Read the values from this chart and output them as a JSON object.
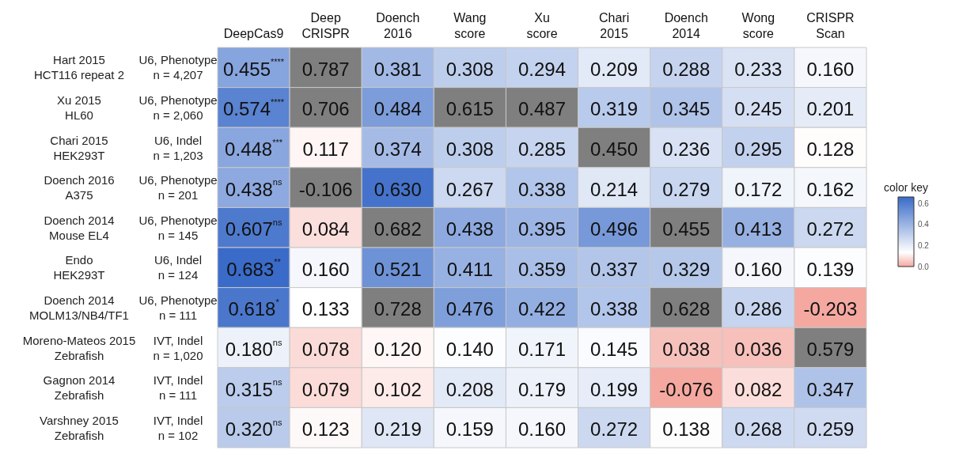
{
  "chart_data": {
    "type": "heatmap",
    "clabel": "color key",
    "categories": [
      "DeepCas9",
      "Deep\nCRISPR",
      "Doench\n2016",
      "Wang\nscore",
      "Xu\nscore",
      "Chari\n2015",
      "Doench\n2014",
      "Wong\nscore",
      "CRISPR\nScan"
    ],
    "y_categories": [
      "Hart 2015\nHCT116 repeat 2",
      "Xu 2015\nHL60",
      "Chari 2015\nHEK293T",
      "Doench 2016\nA375",
      "Doench 2014\nMouse EL4",
      "Endo\nHEK293T",
      "Doench 2014\nMOLM13/NB4/TF1",
      "Moreno-Mateos 2015\nZebrafish",
      "Gagnon 2014\nZebrafish",
      "Varshney 2015\nZebrafish"
    ],
    "y2_categories": [
      "U6, Phenotype\nn = 4,207",
      "U6, Phenotype\nn = 2,060",
      "U6, Indel\nn = 1,203",
      "U6, Phenotype\nn = 201",
      "U6, Phenotype\nn = 145",
      "U6, Indel\nn = 124",
      "U6, Phenotype\nn = 111",
      "IVT, Indel\nn = 1,020",
      "IVT, Indel\nn = 111",
      "IVT, Indel\nn = 102"
    ],
    "cells": [
      [
        0.455,
        null,
        0.381,
        0.308,
        0.294,
        0.209,
        0.288,
        0.233,
        0.16
      ],
      [
        0.574,
        null,
        0.484,
        null,
        null,
        0.319,
        0.345,
        0.245,
        0.201
      ],
      [
        0.448,
        0.117,
        0.374,
        0.308,
        0.285,
        null,
        0.236,
        0.295,
        0.128
      ],
      [
        0.438,
        null,
        0.63,
        0.267,
        0.338,
        0.214,
        0.279,
        0.172,
        0.162
      ],
      [
        0.607,
        0.084,
        null,
        0.438,
        0.395,
        0.496,
        null,
        0.413,
        0.272
      ],
      [
        0.683,
        0.16,
        0.521,
        0.411,
        0.359,
        0.337,
        0.329,
        0.16,
        0.139
      ],
      [
        0.618,
        0.133,
        null,
        0.476,
        0.422,
        0.338,
        null,
        0.286,
        -0.203
      ],
      [
        0.18,
        0.078,
        0.12,
        0.14,
        0.171,
        0.145,
        0.038,
        0.036,
        null
      ],
      [
        0.315,
        0.079,
        0.102,
        0.208,
        0.179,
        0.199,
        -0.076,
        0.082,
        0.347
      ],
      [
        0.32,
        0.123,
        0.219,
        0.159,
        0.16,
        0.272,
        0.138,
        0.268,
        0.259
      ]
    ],
    "cell_labels": [
      [
        "0.455$^{****}$",
        "0.787",
        "0.381",
        "0.308",
        "0.294",
        "0.209",
        "0.288",
        "0.233",
        "0.160"
      ],
      [
        "0.574$^{****}$",
        "0.706",
        "0.484",
        "0.615",
        "0.487",
        "0.319",
        "0.345",
        "0.245",
        "0.201"
      ],
      [
        "0.448$^{***}$",
        "0.117",
        "0.374",
        "0.308",
        "0.285",
        "0.450",
        "0.236",
        "0.295",
        "0.128"
      ],
      [
        "0.438$^{ns}$",
        "-0.106",
        "0.630",
        "0.267",
        "0.338",
        "0.214",
        "0.279",
        "0.172",
        "0.162"
      ],
      [
        "0.607$^{ns}$",
        "0.084",
        "0.682",
        "0.438",
        "0.395",
        "0.496",
        "0.455",
        "0.413",
        "0.272"
      ],
      [
        "0.683$^{**}$",
        "0.160",
        "0.521",
        "0.411",
        "0.359",
        "0.337",
        "0.329",
        "0.160",
        "0.139"
      ],
      [
        "0.618$^{*}$",
        "0.133",
        "0.728",
        "0.476",
        "0.422",
        "0.338",
        "0.628",
        "0.286",
        "-0.203"
      ],
      [
        "0.180$^{ns}$",
        "0.078",
        "0.120",
        "0.140",
        "0.171",
        "0.145",
        "0.038",
        "0.036",
        "0.579"
      ],
      [
        "0.315$^{ns}$",
        "0.079",
        "0.102",
        "0.208",
        "0.179",
        "0.199",
        "-0.076",
        "0.082",
        "0.347"
      ],
      [
        "0.320$^{ns}$",
        "0.123",
        "0.219",
        "0.159",
        "0.160",
        "0.272",
        "0.138",
        "0.268",
        "0.259"
      ]
    ],
    "clim": [
      0,
      0.66
    ],
    "cticks": [
      {
        "value": 0,
        "label": "0.0"
      },
      {
        "value": 0.2,
        "label": "0.2"
      },
      {
        "value": 0.4,
        "label": "0.4"
      },
      {
        "value": 0.6,
        "label": "0.6"
      }
    ]
  }
}
